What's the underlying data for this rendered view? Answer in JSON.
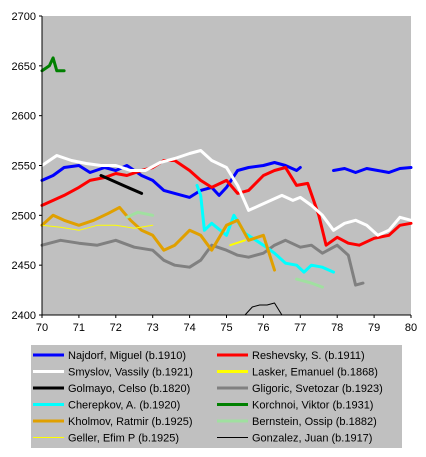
{
  "chart_data": {
    "type": "line",
    "title": "",
    "xlabel": "",
    "ylabel": "",
    "xlim": [
      70,
      80
    ],
    "ylim": [
      2400,
      2700
    ],
    "x_ticks": [
      "70",
      "71",
      "72",
      "73",
      "74",
      "75",
      "76",
      "77",
      "78",
      "79",
      "80"
    ],
    "y_ticks": [
      "2700",
      "2650",
      "2600",
      "2550",
      "2500",
      "2450",
      "2400"
    ],
    "grid": false,
    "plot_background": "#c0c0c0",
    "legend_placement": "bottom",
    "series": [
      {
        "name": "Najdorf, Miguel (b.1910)",
        "color": "#0000ff",
        "width": 3,
        "points": [
          [
            70.0,
            2535
          ],
          [
            70.3,
            2540
          ],
          [
            70.6,
            2548
          ],
          [
            71.0,
            2550
          ],
          [
            71.3,
            2543
          ],
          [
            71.7,
            2548
          ],
          [
            72.0,
            2545
          ],
          [
            72.3,
            2550
          ],
          [
            72.7,
            2540
          ],
          [
            73.0,
            2535
          ],
          [
            73.3,
            2525
          ],
          [
            73.6,
            2522
          ],
          [
            74.0,
            2518
          ],
          [
            74.3,
            2525
          ],
          [
            74.6,
            2528
          ],
          [
            74.8,
            2520
          ],
          [
            75.0,
            2528
          ],
          [
            75.3,
            2545
          ],
          [
            75.6,
            2548
          ],
          [
            76.0,
            2550
          ],
          [
            76.3,
            2553
          ],
          [
            76.6,
            2550
          ],
          [
            76.9,
            2545
          ],
          [
            77.0,
            2548
          ]
        ]
      },
      {
        "name": "Najdorf, Miguel (b.1910)",
        "color": "#0000ff",
        "width": 3,
        "points": [
          [
            77.9,
            2545
          ],
          [
            78.2,
            2547
          ],
          [
            78.5,
            2543
          ],
          [
            78.8,
            2547
          ],
          [
            79.1,
            2545
          ],
          [
            79.4,
            2543
          ],
          [
            79.7,
            2547
          ],
          [
            80.0,
            2548
          ]
        ]
      },
      {
        "name": "Reshevsky, S. (b.1911)",
        "color": "#ff0000",
        "width": 3,
        "points": [
          [
            70.0,
            2510
          ],
          [
            70.3,
            2515
          ],
          [
            70.6,
            2520
          ],
          [
            71.0,
            2528
          ],
          [
            71.3,
            2535
          ],
          [
            71.7,
            2538
          ],
          [
            72.0,
            2542
          ],
          [
            72.3,
            2540
          ],
          [
            72.7,
            2545
          ],
          [
            73.0,
            2548
          ],
          [
            73.3,
            2555
          ],
          [
            73.6,
            2555
          ],
          [
            74.0,
            2545
          ],
          [
            74.3,
            2535
          ],
          [
            74.6,
            2528
          ],
          [
            75.0,
            2535
          ],
          [
            75.3,
            2522
          ],
          [
            75.6,
            2525
          ],
          [
            76.0,
            2540
          ],
          [
            76.3,
            2545
          ],
          [
            76.6,
            2548
          ],
          [
            76.9,
            2530
          ],
          [
            77.2,
            2532
          ],
          [
            77.5,
            2500
          ],
          [
            77.7,
            2470
          ],
          [
            78.0,
            2478
          ],
          [
            78.3,
            2472
          ],
          [
            78.6,
            2470
          ],
          [
            79.0,
            2477
          ],
          [
            79.4,
            2480
          ],
          [
            79.7,
            2490
          ],
          [
            80.0,
            2492
          ]
        ]
      },
      {
        "name": "Smyslov, Vassily (b.1921)",
        "color": "#ffffff",
        "width": 3,
        "points": [
          [
            70.0,
            2550
          ],
          [
            70.4,
            2560
          ],
          [
            70.8,
            2555
          ],
          [
            71.2,
            2552
          ],
          [
            71.6,
            2550
          ],
          [
            72.0,
            2550
          ],
          [
            72.4,
            2545
          ],
          [
            72.8,
            2545
          ],
          [
            73.2,
            2553
          ],
          [
            73.6,
            2557
          ],
          [
            74.0,
            2562
          ],
          [
            74.3,
            2565
          ],
          [
            74.6,
            2555
          ],
          [
            75.0,
            2548
          ],
          [
            75.3,
            2530
          ],
          [
            75.6,
            2505
          ],
          [
            75.9,
            2510
          ],
          [
            76.2,
            2515
          ],
          [
            76.5,
            2520
          ],
          [
            76.8,
            2515
          ],
          [
            77.0,
            2518
          ],
          [
            77.3,
            2510
          ],
          [
            77.6,
            2500
          ],
          [
            77.9,
            2485
          ],
          [
            78.2,
            2492
          ],
          [
            78.5,
            2495
          ],
          [
            78.8,
            2490
          ],
          [
            79.1,
            2480
          ],
          [
            79.4,
            2485
          ],
          [
            79.7,
            2498
          ],
          [
            80.0,
            2495
          ]
        ]
      },
      {
        "name": "Lasker, Emanuel (b.1868)",
        "color": "#ffff00",
        "width": 2,
        "points": [
          [
            75.1,
            2470
          ],
          [
            75.5,
            2475
          ]
        ]
      },
      {
        "name": "Golmayo, Celso (b.1820)",
        "color": "#000000",
        "width": 3,
        "points": [
          [
            71.6,
            2540
          ],
          [
            72.2,
            2530
          ],
          [
            72.7,
            2522
          ]
        ]
      },
      {
        "name": "Gligoric, Svetozar (b.1923)",
        "color": "#808080",
        "width": 3,
        "points": [
          [
            70.0,
            2470
          ],
          [
            70.5,
            2475
          ],
          [
            71.0,
            2472
          ],
          [
            71.5,
            2470
          ],
          [
            72.0,
            2475
          ],
          [
            72.5,
            2468
          ],
          [
            73.0,
            2465
          ],
          [
            73.3,
            2455
          ],
          [
            73.6,
            2450
          ],
          [
            74.0,
            2448
          ],
          [
            74.3,
            2455
          ],
          [
            74.6,
            2470
          ],
          [
            75.0,
            2465
          ],
          [
            75.3,
            2460
          ],
          [
            75.6,
            2458
          ],
          [
            76.0,
            2462
          ],
          [
            76.3,
            2470
          ],
          [
            76.6,
            2475
          ],
          [
            77.0,
            2468
          ],
          [
            77.3,
            2470
          ],
          [
            77.6,
            2462
          ],
          [
            78.0,
            2470
          ],
          [
            78.3,
            2460
          ],
          [
            78.5,
            2430
          ],
          [
            78.7,
            2432
          ]
        ]
      },
      {
        "name": "Cherepkov, A. (b.1920)",
        "color": "#00ffff",
        "width": 3,
        "points": [
          [
            74.2,
            2530
          ],
          [
            74.3,
            2520
          ],
          [
            74.4,
            2485
          ],
          [
            74.6,
            2492
          ],
          [
            75.0,
            2480
          ],
          [
            75.2,
            2500
          ],
          [
            75.5,
            2482
          ],
          [
            75.8,
            2475
          ],
          [
            76.0,
            2470
          ],
          [
            76.3,
            2462
          ],
          [
            76.6,
            2452
          ],
          [
            76.9,
            2450
          ],
          [
            77.1,
            2443
          ],
          [
            77.3,
            2450
          ],
          [
            77.6,
            2448
          ],
          [
            77.9,
            2443
          ]
        ]
      },
      {
        "name": "Korchnoi, Viktor (b.1931)",
        "color": "#008000",
        "width": 3,
        "points": [
          [
            70.0,
            2645
          ],
          [
            70.2,
            2650
          ],
          [
            70.3,
            2658
          ],
          [
            70.4,
            2645
          ],
          [
            70.6,
            2645
          ]
        ]
      },
      {
        "name": "Kholmov, Ratmir (b.1925)",
        "color": "#e0a000",
        "width": 3,
        "points": [
          [
            70.0,
            2490
          ],
          [
            70.3,
            2500
          ],
          [
            70.6,
            2495
          ],
          [
            71.0,
            2490
          ],
          [
            71.4,
            2495
          ],
          [
            71.8,
            2502
          ],
          [
            72.1,
            2508
          ],
          [
            72.4,
            2495
          ],
          [
            72.7,
            2485
          ],
          [
            73.0,
            2480
          ],
          [
            73.3,
            2465
          ],
          [
            73.6,
            2470
          ],
          [
            74.0,
            2485
          ],
          [
            74.3,
            2480
          ],
          [
            74.6,
            2465
          ],
          [
            75.0,
            2490
          ],
          [
            75.3,
            2495
          ],
          [
            75.6,
            2475
          ],
          [
            76.0,
            2480
          ],
          [
            76.3,
            2445
          ]
        ]
      },
      {
        "name": "Bernstein, Ossip (b.1882)",
        "color": "#a0e0a0",
        "width": 3,
        "points": [
          [
            72.3,
            2498
          ],
          [
            72.6,
            2503
          ],
          [
            73.0,
            2500
          ]
        ]
      },
      {
        "name": "Bernstein, Ossip (b.1882)",
        "color": "#a0e0a0",
        "width": 3,
        "points": [
          [
            76.9,
            2436
          ],
          [
            77.3,
            2432
          ],
          [
            77.6,
            2428
          ]
        ]
      },
      {
        "name": "Geller, Efim P (b.1925)",
        "color": "#ffff00",
        "width": 1,
        "points": [
          [
            70.0,
            2490
          ],
          [
            70.5,
            2488
          ],
          [
            71.0,
            2485
          ],
          [
            71.5,
            2490
          ],
          [
            72.0,
            2490
          ],
          [
            72.5,
            2487
          ],
          [
            73.0,
            2490
          ]
        ]
      },
      {
        "name": "Gonzalez, Juan (b.1917)",
        "color": "#000000",
        "width": 1,
        "points": [
          [
            75.5,
            2400
          ],
          [
            75.7,
            2408
          ],
          [
            75.9,
            2410
          ],
          [
            76.1,
            2410
          ],
          [
            76.3,
            2412
          ],
          [
            76.5,
            2400
          ]
        ]
      }
    ],
    "legend": [
      {
        "label": "Najdorf, Miguel (b.1910)",
        "color": "#0000ff",
        "width": 3
      },
      {
        "label": "Reshevsky, S. (b.1911)",
        "color": "#ff0000",
        "width": 3
      },
      {
        "label": "Smyslov, Vassily (b.1921)",
        "color": "#ffffff",
        "width": 3
      },
      {
        "label": "Lasker, Emanuel (b.1868)",
        "color": "#ffff00",
        "width": 3
      },
      {
        "label": "Golmayo, Celso (b.1820)",
        "color": "#000000",
        "width": 3
      },
      {
        "label": "Gligoric, Svetozar (b.1923)",
        "color": "#808080",
        "width": 3
      },
      {
        "label": "Cherepkov, A. (b.1920)",
        "color": "#00ffff",
        "width": 3
      },
      {
        "label": "Korchnoi, Viktor (b.1931)",
        "color": "#008000",
        "width": 3
      },
      {
        "label": "Kholmov, Ratmir (b.1925)",
        "color": "#e0a000",
        "width": 3
      },
      {
        "label": "Bernstein, Ossip (b.1882)",
        "color": "#a0e0a0",
        "width": 3
      },
      {
        "label": "Geller, Efim P (b.1925)",
        "color": "#ffff00",
        "width": 1
      },
      {
        "label": "Gonzalez, Juan (b.1917)",
        "color": "#000000",
        "width": 1
      }
    ]
  }
}
